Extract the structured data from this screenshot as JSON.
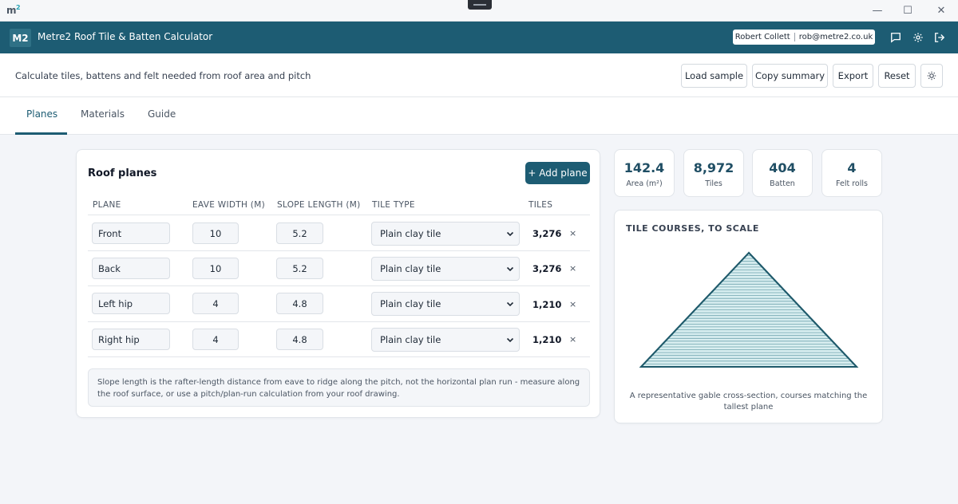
{
  "os": {
    "logo": "m",
    "logo_sup": "2",
    "minimize": "—",
    "maximize": "☐",
    "close": "✕"
  },
  "header": {
    "badge": "M2",
    "title": "Metre2 Roof Tile & Batten Calculator",
    "user_name": "Robert Collett",
    "user_email": "rob@metre2.co.uk",
    "icons": [
      "chat-icon",
      "gear-icon",
      "logout-icon"
    ]
  },
  "toolbar": {
    "subtitle": "Calculate tiles, battens and felt needed from roof area and pitch",
    "load_sample": "Load sample",
    "copy_summary": "Copy summary",
    "export": "Export",
    "reset": "Reset",
    "theme_icon": "sun-icon"
  },
  "tabs": [
    {
      "label": "Planes",
      "active": true
    },
    {
      "label": "Materials",
      "active": false
    },
    {
      "label": "Guide",
      "active": false
    }
  ],
  "planes": {
    "title": "Roof planes",
    "add_label": "+ Add plane",
    "columns": [
      "PLANE",
      "EAVE WIDTH (M)",
      "SLOPE LENGTH (M)",
      "TILE TYPE",
      "TILES"
    ],
    "rows": [
      {
        "name": "Front",
        "eave": "10",
        "slope": "5.2",
        "tile": "Plain clay tile",
        "tiles": "3,276"
      },
      {
        "name": "Back",
        "eave": "10",
        "slope": "5.2",
        "tile": "Plain clay tile",
        "tiles": "3,276"
      },
      {
        "name": "Left hip",
        "eave": "4",
        "slope": "4.8",
        "tile": "Plain clay tile",
        "tiles": "1,210"
      },
      {
        "name": "Right hip",
        "eave": "4",
        "slope": "4.8",
        "tile": "Plain clay tile",
        "tiles": "1,210"
      }
    ],
    "delete_glyph": "×",
    "note": "Slope length is the rafter-length distance from eave to ridge along the pitch, not the horizontal plan run - measure along the roof surface, or use a pitch/plan-run calculation from your roof drawing."
  },
  "stats": [
    {
      "value": "142.4",
      "label": "Area (m²)"
    },
    {
      "value": "8,972",
      "label": "Tiles"
    },
    {
      "value": "404",
      "label": "Batten"
    },
    {
      "value": "4",
      "label": "Felt rolls"
    }
  ],
  "tile_courses": {
    "title": "TILE COURSES, TO SCALE",
    "caption": "A representative gable cross-section, courses matching the tallest plane",
    "courses": 40,
    "fill_color": "#d8eef0",
    "stroke_color": "#1f5a6b"
  }
}
